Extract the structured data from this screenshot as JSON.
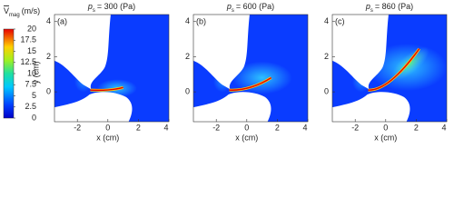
{
  "colorbar": {
    "symbol": "V",
    "subscript": "mag",
    "unit": "(m/s)",
    "ticks": [
      0,
      2.5,
      5,
      7.5,
      10,
      12.5,
      15,
      17.5,
      20
    ],
    "lim": [
      0,
      20
    ]
  },
  "chart_data": [
    {
      "type": "contour",
      "label": "(a)",
      "title_symbol": "p",
      "title_subscript": "s",
      "title": "= 300 (Pa)",
      "xlabel": "x (cm)",
      "ylabel": "y (cm)",
      "xlim": [
        -3.5,
        4
      ],
      "ylim": [
        -1.7,
        4.4
      ],
      "xticks": [
        -2,
        0,
        2,
        4
      ],
      "yticks": [
        0,
        2,
        4
      ]
    },
    {
      "type": "contour",
      "label": "(b)",
      "title_symbol": "p",
      "title_subscript": "s",
      "title": "= 600 (Pa)",
      "xlabel": "x (cm)",
      "xlim": [
        -3.5,
        4
      ],
      "ylim": [
        -1.7,
        4.4
      ],
      "xticks": [
        -2,
        0,
        2,
        4
      ],
      "yticks": [
        0,
        2,
        4
      ]
    },
    {
      "type": "contour",
      "label": "(c)",
      "title_symbol": "p",
      "title_subscript": "s",
      "title": "= 860 (Pa)",
      "xlabel": "x (cm)",
      "xlim": [
        -3.5,
        4
      ],
      "ylim": [
        -1.7,
        4.4
      ],
      "xticks": [
        -2,
        0,
        2,
        4
      ],
      "yticks": [
        0,
        2,
        4
      ]
    }
  ]
}
